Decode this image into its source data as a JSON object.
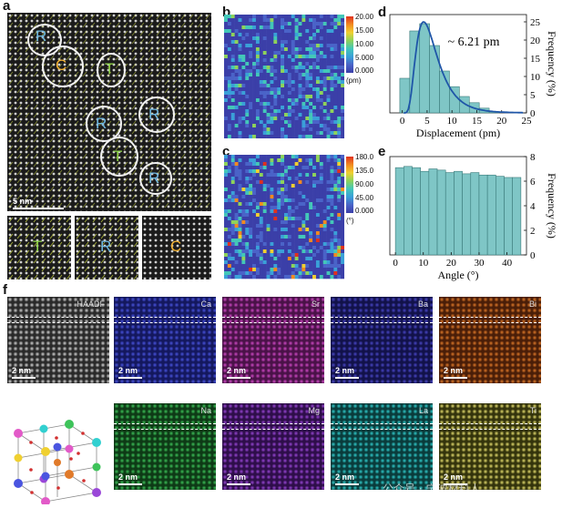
{
  "panel_labels": {
    "a": "a",
    "b": "b",
    "c": "c",
    "d": "d",
    "e": "e",
    "f": "f"
  },
  "panel_a": {
    "regions": [
      {
        "id": "r1",
        "label": "R",
        "color": "#6fb8e0"
      },
      {
        "id": "c1",
        "label": "C",
        "color": "#f2b233"
      },
      {
        "id": "t1",
        "label": "T",
        "color": "#8fd54a"
      },
      {
        "id": "r2",
        "label": "R",
        "color": "#6fb8e0"
      },
      {
        "id": "r3",
        "label": "R",
        "color": "#6fb8e0"
      },
      {
        "id": "t2",
        "label": "T",
        "color": "#8fd54a"
      },
      {
        "id": "r4",
        "label": "R",
        "color": "#6fb8e0"
      }
    ],
    "scalebar": "5 nm",
    "insets": [
      {
        "label": "T",
        "color": "#8fd54a"
      },
      {
        "label": "R",
        "color": "#6fb8e0"
      },
      {
        "label": "C",
        "color": "#f2b233"
      }
    ]
  },
  "panel_b": {
    "colorbar_ticks": [
      "20.00",
      "15.00",
      "10.00",
      "5.000",
      "0.000"
    ],
    "unit": "(pm)",
    "colors": [
      "#3b3fa8",
      "#4a63c8",
      "#3aa0d8",
      "#43c7b8",
      "#8ed35a",
      "#f0d030",
      "#f28a20",
      "#e0301e"
    ]
  },
  "panel_c": {
    "colorbar_ticks": [
      "180.0",
      "135.0",
      "90.00",
      "45.00",
      "0.000"
    ],
    "unit": "(°)"
  },
  "chart_data": [
    {
      "type": "bar",
      "panel": "d",
      "title": "",
      "annotation": "~ 6.21 pm",
      "xlabel": "Displacement (pm)",
      "ylabel": "Frequency (%)",
      "x_ticks": [
        "0",
        "5",
        "10",
        "15",
        "20",
        "25"
      ],
      "y_ticks": [
        "0",
        "5",
        "10",
        "15",
        "20",
        "25"
      ],
      "xlim": [
        -2.5,
        25
      ],
      "ylim": [
        0,
        27
      ],
      "bin_width": 2,
      "bin_centers": [
        0.5,
        2.5,
        4.5,
        6.5,
        8.5,
        10.5,
        12.5,
        14.5,
        16.5,
        18.5
      ],
      "values": [
        9.5,
        22.5,
        24.5,
        18.5,
        11.5,
        7.2,
        4.5,
        2.8,
        1.3,
        0.3
      ],
      "fit": {
        "type": "lognormal",
        "peak_x": 4.3,
        "peak_y": 25
      }
    },
    {
      "type": "bar",
      "panel": "e",
      "title": "",
      "xlabel": "Angle (°)",
      "ylabel": "Frequency (%)",
      "x_ticks": [
        "0",
        "10",
        "20",
        "30",
        "40"
      ],
      "y_ticks": [
        "0",
        "2",
        "4",
        "6",
        "8"
      ],
      "xlim": [
        -2,
        47
      ],
      "ylim": [
        0,
        8
      ],
      "bin_width": 3,
      "bin_centers": [
        1.5,
        4.5,
        7.5,
        10.5,
        13.5,
        16.5,
        19.5,
        22.5,
        25.5,
        28.5,
        31.5,
        34.5,
        37.5,
        40.5,
        43.5
      ],
      "values": [
        7.1,
        7.2,
        7.1,
        6.8,
        7.0,
        6.9,
        6.7,
        6.8,
        6.6,
        6.7,
        6.5,
        6.5,
        6.4,
        6.3,
        6.3
      ]
    }
  ],
  "panel_f": {
    "maps": [
      {
        "name": "HAADF",
        "bg": "#2a2a2a",
        "dot": "#d8d8d8"
      },
      {
        "name": "Ca",
        "bg": "#14185e",
        "dot": "#4a55e0"
      },
      {
        "name": "Sr",
        "bg": "#4a1248",
        "dot": "#d24ac8"
      },
      {
        "name": "Ba",
        "bg": "#12124a",
        "dot": "#4a48c8"
      },
      {
        "name": "Bi",
        "bg": "#4a1e08",
        "dot": "#e07a2a"
      },
      {
        "name": "Na",
        "bg": "#0e3a16",
        "dot": "#3ec35a"
      },
      {
        "name": "Mg",
        "bg": "#2e0e4a",
        "dot": "#9a48d8"
      },
      {
        "name": "La",
        "bg": "#0a3c3c",
        "dot": "#32d0d0"
      },
      {
        "name": "Ti",
        "bg": "#34340c",
        "dot": "#e8e070"
      }
    ],
    "scalebar": "2 nm",
    "watermark": "公众号 · 宁波材料人"
  }
}
